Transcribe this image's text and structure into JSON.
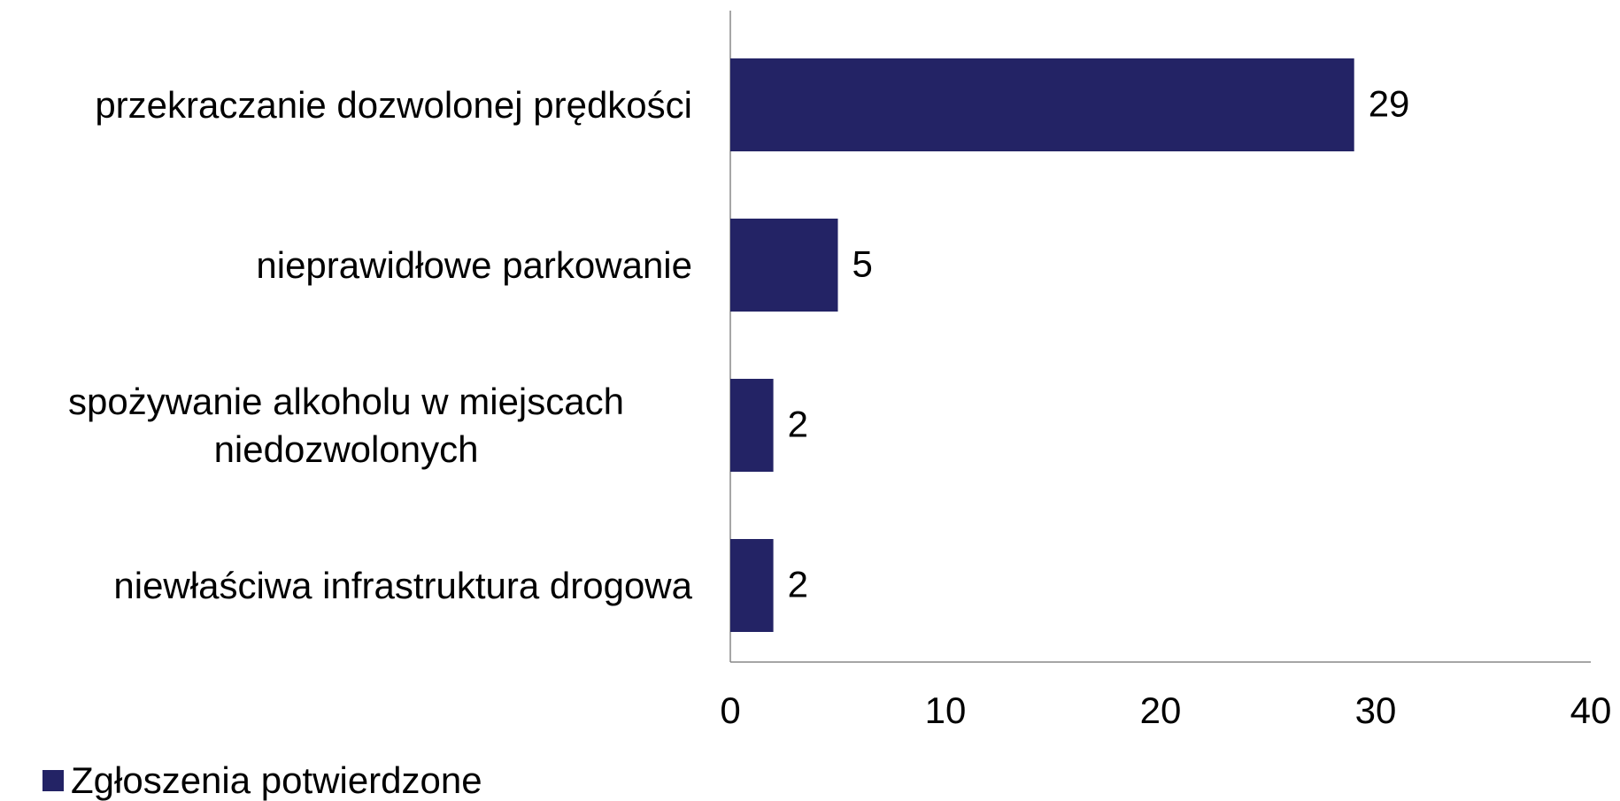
{
  "chart_data": {
    "type": "bar",
    "orientation": "horizontal",
    "categories": [
      "przekraczanie dozwolonej prędkości",
      "nieprawidłowe parkowanie",
      "spożywanie alkoholu w miejscach niedozwolonych",
      "niewłaściwa infrastruktura drogowa"
    ],
    "series": [
      {
        "name": "Zgłoszenia potwierdzone",
        "color": "#232365",
        "values": [
          29,
          5,
          2,
          2
        ]
      }
    ],
    "xlim": [
      0,
      40
    ],
    "xticks": [
      0,
      10,
      20,
      30,
      40
    ],
    "grid": false,
    "legend": "bottom-left"
  }
}
